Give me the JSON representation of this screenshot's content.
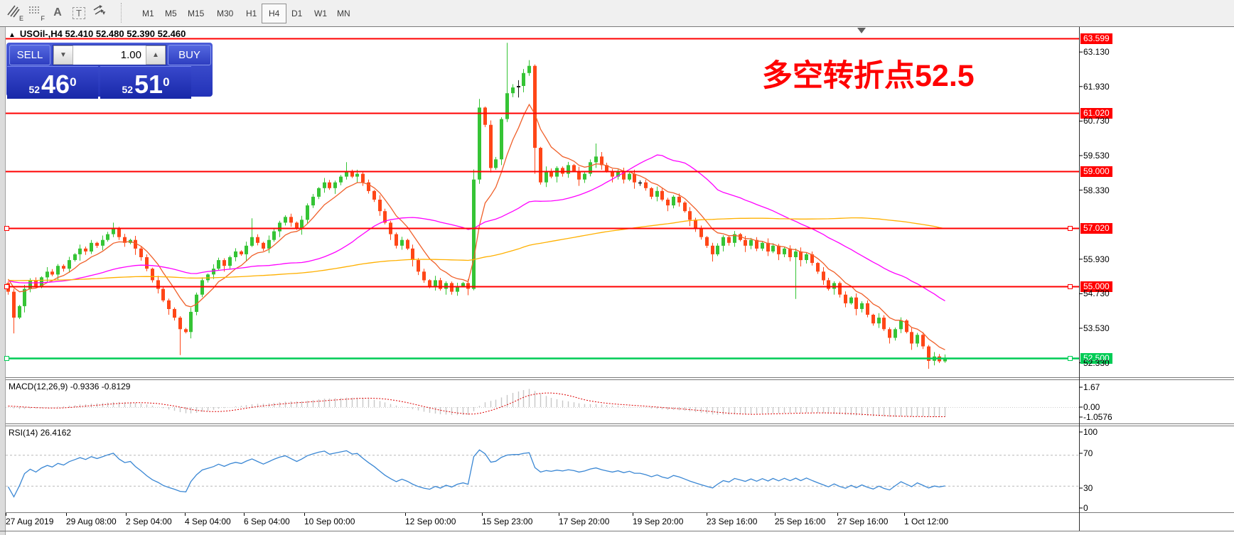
{
  "toolbar": {
    "icons": [
      {
        "name": "hatch-draw-icon",
        "sub": "E"
      },
      {
        "name": "grid-draw-icon",
        "sub": "F"
      },
      {
        "name": "text-label-icon",
        "glyph": "A"
      },
      {
        "name": "textbox-icon",
        "glyph": "T"
      },
      {
        "name": "arrange-arrows-icon",
        "caret": "▾"
      }
    ],
    "timeframes": [
      "M1",
      "M5",
      "M15",
      "M30",
      "H1",
      "H4",
      "D1",
      "W1",
      "MN"
    ],
    "active_timeframe": "H4"
  },
  "window": {
    "collapse_icon": "▲",
    "title": "USOil-,H4  52.410 52.480 52.390 52.460"
  },
  "trade_panel": {
    "sell_label": "SELL",
    "buy_label": "BUY",
    "volume": "1.00",
    "down_icon": "▼",
    "up_icon": "▲",
    "sell_price_small": "52",
    "sell_price_big": "46",
    "sell_price_sup": "0",
    "buy_price_small": "52",
    "buy_price_big": "51",
    "buy_price_sup": "0"
  },
  "annotation": {
    "text": "多空转折点52.5"
  },
  "colors": {
    "up": "#35c435",
    "down": "#ff4617",
    "doji": "#1a1a1a",
    "resistance": "#ff0000",
    "support": "#00cc55",
    "ma_fast": "#f0602a",
    "ma_mid": "#ff00ff",
    "ma_slow": "#ffb000",
    "macd_hist": "#c8c8c8",
    "macd_signal": "#dd0000",
    "rsi": "#3a87d4",
    "annotation": "#ff0000"
  },
  "chart_data": {
    "type": "candlestick",
    "symbol": "USOil-",
    "period": "H4",
    "quote": {
      "open": "52.410",
      "high": "52.480",
      "low": "52.390",
      "close": "52.460"
    },
    "x_labels": [
      "27 Aug 2019",
      "29 Aug 08:00",
      "2 Sep 04:00",
      "4 Sep 04:00",
      "6 Sep 04:00",
      "10 Sep 00:00",
      "12 Sep 00:00",
      "15 Sep 23:00",
      "17 Sep 20:00",
      "19 Sep 20:00",
      "23 Sep 16:00",
      "25 Sep 16:00",
      "27 Sep 16:00",
      "1 Oct 12:00"
    ],
    "y_ticks": [
      "63.130",
      "61.930",
      "60.730",
      "59.530",
      "58.330",
      "55.930",
      "54.730",
      "53.530",
      "52.330"
    ],
    "levels": [
      {
        "price": 63.599,
        "label": "63.599",
        "handles": false
      },
      {
        "price": 61.02,
        "label": "61.020",
        "handles": false
      },
      {
        "price": 59.0,
        "label": "59.000",
        "handles": false
      },
      {
        "price": 57.02,
        "label": "57.020",
        "handles": true
      },
      {
        "price": 55.0,
        "label": "55.000",
        "handles": true
      }
    ],
    "support_line": {
      "price": 52.5,
      "label": "52.500",
      "handles": true
    },
    "first_open": 55.1,
    "closes": [
      54.8,
      53.9,
      54.3,
      54.9,
      55.2,
      55.0,
      55.3,
      55.5,
      55.4,
      55.7,
      55.6,
      55.9,
      56.1,
      56.3,
      56.2,
      56.5,
      56.4,
      56.6,
      56.8,
      57.0,
      56.7,
      56.5,
      56.6,
      56.3,
      56.0,
      55.6,
      55.2,
      54.9,
      54.5,
      54.2,
      53.9,
      53.5,
      53.4,
      54.1,
      54.7,
      55.2,
      55.4,
      55.6,
      55.9,
      55.7,
      56.0,
      56.2,
      56.1,
      56.4,
      56.7,
      56.5,
      56.3,
      56.6,
      56.9,
      57.2,
      57.4,
      57.2,
      57.0,
      57.3,
      57.8,
      58.1,
      58.4,
      58.6,
      58.4,
      58.6,
      58.8,
      59.0,
      58.8,
      58.9,
      58.6,
      58.3,
      58.0,
      57.6,
      57.2,
      56.8,
      56.4,
      56.6,
      56.3,
      55.9,
      55.5,
      55.2,
      55.0,
      55.2,
      54.9,
      55.1,
      54.8,
      55.0,
      55.1,
      54.9,
      58.7,
      61.2,
      60.6,
      59.1,
      59.4,
      60.8,
      61.7,
      61.9,
      61.95,
      62.4,
      62.65,
      59.8,
      58.6,
      59.0,
      58.8,
      59.1,
      58.9,
      59.2,
      59.0,
      58.7,
      58.9,
      59.3,
      59.5,
      59.2,
      59.0,
      58.8,
      59.0,
      58.7,
      58.9,
      58.6,
      58.6,
      58.4,
      58.1,
      58.3,
      58.0,
      57.8,
      58.1,
      57.9,
      57.6,
      57.3,
      57.0,
      56.7,
      56.4,
      56.1,
      56.4,
      56.7,
      56.5,
      56.8,
      56.6,
      56.4,
      56.6,
      56.3,
      56.5,
      56.2,
      56.4,
      56.1,
      56.3,
      56.0,
      56.2,
      55.9,
      56.1,
      55.8,
      55.5,
      55.2,
      54.9,
      55.1,
      54.7,
      54.4,
      54.6,
      54.2,
      54.4,
      54.0,
      53.7,
      53.9,
      53.5,
      53.2,
      53.5,
      53.8,
      53.4,
      53.0,
      53.3,
      52.9,
      52.4,
      52.55,
      52.38,
      52.46
    ],
    "wick_pattern": [
      0.08,
      0.16,
      0.06,
      0.2,
      0.1,
      0.14,
      0.05,
      0.22,
      0.12,
      0.09
    ],
    "wick_overrides": {
      "1": [
        54.9,
        53.35
      ],
      "19": [
        57.2,
        56.7
      ],
      "31": [
        53.95,
        52.6
      ],
      "44": [
        57.35,
        56.35
      ],
      "61": [
        59.3,
        58.7
      ],
      "84": [
        59.05,
        54.85
      ],
      "85": [
        61.5,
        58.55
      ],
      "90": [
        63.45,
        60.7
      ],
      "92": [
        62.15,
        61.55
      ],
      "94": [
        62.85,
        62.3
      ],
      "95": [
        62.7,
        58.9
      ],
      "106": [
        59.95,
        59.1
      ],
      "127": [
        56.5,
        55.85
      ],
      "142": [
        56.3,
        54.55
      ],
      "166": [
        52.95,
        52.12
      ],
      "169": [
        52.62,
        52.33
      ]
    },
    "moving_averages": [
      {
        "period": 8,
        "type": "ema",
        "color_key": "ma_fast"
      },
      {
        "period": 34,
        "type": "sma",
        "color_key": "ma_mid"
      },
      {
        "period": 120,
        "type": "sma",
        "color_key": "ma_slow"
      }
    ],
    "macd": {
      "label": "MACD(12,26,9)",
      "main_value": "-0.9336",
      "signal_value": "-0.8129",
      "axis_labels": [
        "1.67",
        "0.00",
        "-1.0576"
      ]
    },
    "rsi": {
      "label": "RSI(14)",
      "value": "26.4162",
      "axis_labels": [
        "100",
        "70",
        "30",
        "0"
      ],
      "level_lines": [
        70,
        30
      ]
    }
  }
}
